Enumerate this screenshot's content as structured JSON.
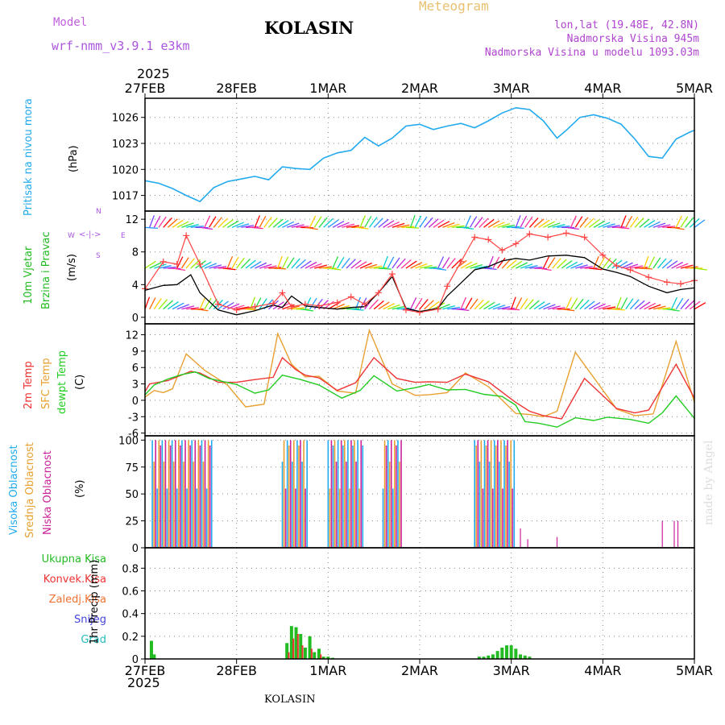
{
  "header": {
    "model_label": "Model",
    "model_name": "wrf-nmm_v3.9.1  e3km",
    "title": "KOLASIN",
    "meteogram": "Meteogram",
    "lonlat": "lon,lat (19.48E, 42.8N)",
    "altitude": "Nadmorska Visina 945m",
    "model_altitude": "Nadmorska Visina u modelu 1093.03m",
    "year_top": "2025",
    "year_bottom": "2025",
    "footer": "KOLASIN",
    "watermark": "made by Angel"
  },
  "colors": {
    "pressure": "#22aaee",
    "temp2m": "#ee3333",
    "sfc": "#e8a030",
    "dew": "#22cc22",
    "high_cloud": "#22aaee",
    "mid_cloud": "#e8a030",
    "low_cloud": "#cc2299",
    "precip_total": "#22bb22",
    "precip_conv": "#ee3333",
    "wind_speed": "#000000",
    "wind_gust": "#ff4444"
  },
  "panels": {
    "pressure": {
      "label": "Pritisak na nivou mora",
      "unit": "(hPa)"
    },
    "wind": {
      "label1": "10m Vjetar",
      "label2": "Brzina i Pravac",
      "unit": "(m/s)",
      "compass_n": "N",
      "compass_s": "S",
      "compass_w": "W",
      "compass_e": "E"
    },
    "temp": {
      "l1": "2m Temp",
      "l2": "SFC Temp",
      "l3": "dewpt Temp",
      "unit": "(C)"
    },
    "cloud": {
      "l1": "Visoka Oblacnost",
      "l2": "Srednja Oblacnost",
      "l3": "Niska Oblacnost",
      "unit": "(%)"
    },
    "precip": {
      "legend": [
        "Ukupna Kisa",
        "Konvek.Kisa",
        "Zaledj.Kisa",
        "Snijeg",
        "Grad"
      ],
      "ylabel": "1hr Precip (mm)"
    }
  },
  "chart_data": [
    {
      "type": "line",
      "title": "Pritisak na nivou mora",
      "ylabel": "(hPa)",
      "x_categories": [
        "27FEB",
        "28FEB",
        "1MAR",
        "2MAR",
        "3MAR",
        "4MAR",
        "5MAR"
      ],
      "x_days": [
        0,
        1,
        2,
        3,
        4,
        5,
        6
      ],
      "yticks": [
        1017,
        1020,
        1023,
        1026
      ],
      "ylim": [
        1015.2,
        1028.2
      ],
      "series": [
        {
          "name": "MSLP",
          "x": [
            0,
            0.15,
            0.3,
            0.45,
            0.6,
            0.75,
            0.9,
            1.05,
            1.2,
            1.35,
            1.5,
            1.65,
            1.8,
            1.95,
            2.1,
            2.25,
            2.4,
            2.55,
            2.7,
            2.85,
            3.0,
            3.15,
            3.3,
            3.45,
            3.6,
            3.75,
            3.9,
            4.05,
            4.2,
            4.35,
            4.5,
            4.6,
            4.75,
            4.9,
            5.05,
            5.2,
            5.35,
            5.5,
            5.65,
            5.8,
            5.95,
            6.0
          ],
          "values": [
            1018.7,
            1018.4,
            1017.8,
            1017.0,
            1016.3,
            1017.9,
            1018.6,
            1018.9,
            1019.2,
            1018.8,
            1020.3,
            1020.1,
            1020.0,
            1021.3,
            1021.9,
            1022.2,
            1023.7,
            1022.7,
            1023.6,
            1025.0,
            1025.2,
            1024.6,
            1025.0,
            1025.3,
            1024.8,
            1025.6,
            1026.5,
            1027.1,
            1026.9,
            1025.6,
            1023.6,
            1024.5,
            1026.0,
            1026.3,
            1025.9,
            1025.2,
            1023.5,
            1021.5,
            1021.3,
            1023.5,
            1024.3,
            1024.5
          ]
        }
      ]
    },
    {
      "type": "line",
      "title": "10m Vjetar Brzina i Pravac",
      "ylabel": "(m/s)",
      "yticks": [
        0,
        4,
        8,
        12
      ],
      "ylim": [
        -0.8,
        13
      ],
      "series": [
        {
          "name": "speed",
          "x": [
            0,
            0.2,
            0.35,
            0.5,
            0.6,
            0.8,
            1.0,
            1.2,
            1.4,
            1.5,
            1.6,
            1.75,
            1.9,
            2.1,
            2.25,
            2.4,
            2.55,
            2.7,
            2.85,
            3.0,
            3.2,
            3.3,
            3.45,
            3.6,
            3.75,
            3.9,
            4.05,
            4.2,
            4.4,
            4.6,
            4.8,
            5.0,
            5.15,
            5.3,
            5.5,
            5.7,
            5.85,
            6.0
          ],
          "values": [
            3.3,
            3.9,
            4.0,
            5.2,
            3.0,
            0.9,
            0.3,
            0.8,
            1.5,
            1.2,
            2.6,
            1.4,
            1.2,
            1.0,
            1.2,
            1.3,
            3.0,
            5.0,
            1.1,
            0.7,
            1.1,
            2.6,
            4.2,
            5.8,
            6.2,
            6.9,
            7.2,
            7.0,
            7.5,
            7.6,
            7.3,
            5.9,
            5.5,
            5.0,
            3.8,
            3.0,
            3.4,
            3.6
          ]
        },
        {
          "name": "gust",
          "x": [
            0,
            0.2,
            0.35,
            0.45,
            0.6,
            0.8,
            1.0,
            1.2,
            1.4,
            1.5,
            1.6,
            1.75,
            1.9,
            2.1,
            2.25,
            2.4,
            2.55,
            2.7,
            2.85,
            3.0,
            3.2,
            3.3,
            3.45,
            3.6,
            3.75,
            3.9,
            4.05,
            4.2,
            4.4,
            4.6,
            4.8,
            5.0,
            5.15,
            5.3,
            5.5,
            5.7,
            5.85,
            6.0
          ],
          "values": [
            3.5,
            6.8,
            6.5,
            10.0,
            6.5,
            1.6,
            0.9,
            1.3,
            1.7,
            3.0,
            1.3,
            1.6,
            1.4,
            1.8,
            2.5,
            1.6,
            3.0,
            5.3,
            0.9,
            0.6,
            1.0,
            3.8,
            6.8,
            9.8,
            9.5,
            8.2,
            9.0,
            10.2,
            9.8,
            10.3,
            9.8,
            7.6,
            6.3,
            5.8,
            4.9,
            4.3,
            4.1,
            4.5
          ]
        }
      ]
    },
    {
      "type": "line",
      "title": "2m Temp / SFC Temp / dewpt Temp",
      "ylabel": "(C)",
      "yticks": [
        -6,
        -3,
        0,
        3,
        6,
        9,
        12
      ],
      "ylim": [
        -6.5,
        14
      ],
      "series": [
        {
          "name": "2m Temp",
          "x": [
            0,
            0.05,
            0.25,
            0.5,
            0.6,
            0.8,
            1.0,
            1.2,
            1.4,
            1.5,
            1.65,
            1.75,
            1.9,
            2.1,
            2.3,
            2.5,
            2.75,
            2.95,
            3.1,
            3.3,
            3.5,
            3.75,
            4.05,
            4.2,
            4.35,
            4.55,
            4.8,
            5.15,
            5.35,
            5.5,
            5.8,
            6.0
          ],
          "values": [
            1.6,
            3,
            3.6,
            5.3,
            5.0,
            3.3,
            3.3,
            3.8,
            4.2,
            7.8,
            5.6,
            4.6,
            4.1,
            1.8,
            3.2,
            7.8,
            4.0,
            3.3,
            3.4,
            3.3,
            4.8,
            3.4,
            -0.4,
            -2.0,
            -2.8,
            -3.4,
            4.0,
            -1.5,
            -2.3,
            -1.8,
            6.6,
            0.4
          ]
        },
        {
          "name": "SFC Temp",
          "x": [
            0,
            0.1,
            0.2,
            0.3,
            0.45,
            0.65,
            0.9,
            1.1,
            1.3,
            1.45,
            1.6,
            1.75,
            1.9,
            2.1,
            2.3,
            2.45,
            2.7,
            2.95,
            3.1,
            3.3,
            3.5,
            3.75,
            4.05,
            4.2,
            4.35,
            4.5,
            4.7,
            5.15,
            5.35,
            5.55,
            5.8,
            6.0
          ],
          "values": [
            0.6,
            1.8,
            1.4,
            2.1,
            8.5,
            5.5,
            2.8,
            -1.2,
            -0.7,
            12.2,
            6.6,
            4.3,
            4.4,
            1.7,
            1.3,
            12.8,
            3.0,
            0.9,
            1.0,
            1.4,
            5.0,
            2.5,
            -2.4,
            -2.6,
            -3.0,
            -2.0,
            8.8,
            -1.6,
            -2.8,
            -2.5,
            10.8,
            -0.4
          ]
        },
        {
          "name": "dewpt Temp",
          "x": [
            0,
            0.1,
            0.25,
            0.4,
            0.55,
            0.7,
            1.0,
            1.2,
            1.35,
            1.5,
            1.7,
            1.9,
            2.15,
            2.35,
            2.5,
            2.75,
            2.95,
            3.1,
            3.3,
            3.5,
            3.7,
            3.9,
            4.05,
            4.15,
            4.3,
            4.5,
            4.7,
            4.9,
            5.05,
            5.3,
            5.5,
            5.65,
            5.8,
            6.0
          ],
          "values": [
            1.0,
            2.8,
            3.9,
            4.7,
            5.2,
            4.0,
            2.9,
            1.3,
            1.9,
            4.6,
            3.8,
            2.8,
            0.4,
            1.8,
            4.5,
            1.7,
            2.3,
            2.9,
            1.9,
            2.0,
            1.1,
            0.7,
            -0.9,
            -3.9,
            -4.2,
            -4.9,
            -3.2,
            -3.7,
            -3.1,
            -3.5,
            -4.2,
            -2.3,
            0.8,
            -3.3
          ]
        }
      ]
    },
    {
      "type": "bar",
      "title": "Visoka / Srednja / Niska Oblacnost",
      "ylabel": "(%)",
      "yticks": [
        0,
        25,
        50,
        75,
        100
      ],
      "ylim": [
        0,
        104
      ],
      "segments_100pct_days": [
        [
          0.08,
          0.73
        ],
        [
          1.5,
          1.78
        ],
        [
          2.0,
          2.39
        ],
        [
          2.6,
          2.8
        ],
        [
          3.6,
          4.04
        ]
      ],
      "sparse_low_bars": [
        {
          "x": 4.1,
          "values": 18
        },
        {
          "x": 4.18,
          "values": 8
        },
        {
          "x": 4.5,
          "values": 10
        },
        {
          "x": 5.65,
          "values": 25
        },
        {
          "x": 5.78,
          "values": 25
        },
        {
          "x": 5.82,
          "values": 25
        }
      ]
    },
    {
      "type": "bar",
      "title": "1hr Precip",
      "ylabel": "1hr Precip (mm)",
      "yticks": [
        0,
        0.2,
        0.4,
        0.6,
        0.8
      ],
      "ylim": [
        0,
        0.98
      ],
      "series": [
        {
          "name": "Ukupna Kisa",
          "x": [
            0.07,
            0.1,
            1.55,
            1.6,
            1.65,
            1.7,
            1.75,
            1.8,
            1.85,
            1.9,
            1.95,
            2.0,
            2.05,
            3.65,
            3.7,
            3.75,
            3.8,
            3.85,
            3.9,
            3.95,
            4.0,
            4.05,
            4.1,
            4.15,
            4.2
          ],
          "values": [
            0.16,
            0.04,
            0.14,
            0.29,
            0.28,
            0.22,
            0.1,
            0.2,
            0.06,
            0.09,
            0.02,
            0.02,
            0.01,
            0.02,
            0.02,
            0.03,
            0.04,
            0.07,
            0.1,
            0.12,
            0.12,
            0.09,
            0.04,
            0.03,
            0.02
          ]
        },
        {
          "name": "Konvek.Kisa",
          "x": [
            1.57,
            1.62,
            1.67,
            1.72,
            1.82,
            1.92
          ],
          "values": [
            0.06,
            0.18,
            0.22,
            0.12,
            0.09,
            0.04
          ]
        }
      ]
    }
  ]
}
